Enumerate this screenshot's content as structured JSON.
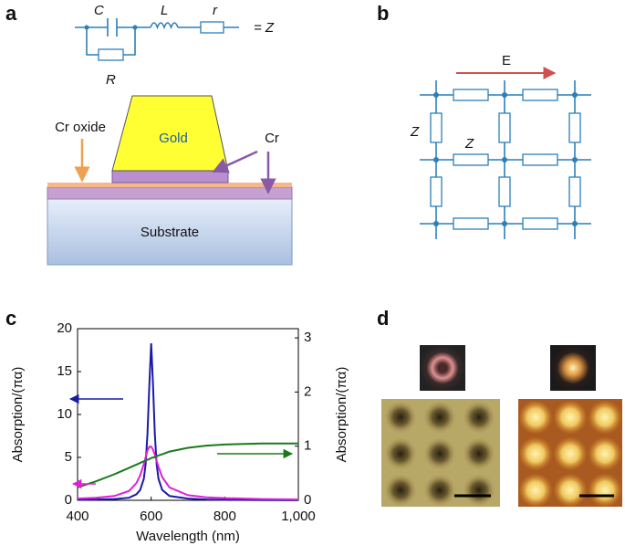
{
  "panel_labels": [
    "a",
    "b",
    "c",
    "d"
  ],
  "panel_a": {
    "capacitor": "C",
    "inductor": "L",
    "series_resistor": "r",
    "equals": "= Z",
    "parallel_resistor": "R",
    "gold": "Gold",
    "cr_oxide": "Cr oxide",
    "cr": "Cr",
    "substrate": "Substrate"
  },
  "panel_b": {
    "field": "E",
    "impedance_vertical": "Z",
    "impedance_horizontal": "Z"
  },
  "chart_data": {
    "type": "line",
    "x_label": "Wavelength (nm)",
    "y_label": "Absorption/(πα)",
    "y2_label": "Absorption/(πα)",
    "x": [
      400,
      450,
      500,
      540,
      560,
      570,
      580,
      585,
      590,
      595,
      600,
      605,
      610,
      615,
      620,
      630,
      650,
      700,
      750,
      800,
      900,
      1000
    ],
    "series": [
      {
        "color": "#1a1aa8",
        "values": [
          0.05,
          0.1,
          0.15,
          0.3,
          0.7,
          1.2,
          2.5,
          4.2,
          7.7,
          13.5,
          18.3,
          13.5,
          7.7,
          4.2,
          2.5,
          1.2,
          0.5,
          0.2,
          0.1,
          0.05,
          0.02,
          0.01
        ]
      },
      {
        "color": "#e020d8",
        "values": [
          0.2,
          0.3,
          0.5,
          1.1,
          2.0,
          2.9,
          4.2,
          5.0,
          5.8,
          6.25,
          6.25,
          5.9,
          5.3,
          4.6,
          3.9,
          2.7,
          1.5,
          0.6,
          0.35,
          0.25,
          0.15,
          0.1
        ]
      },
      {
        "color": "#1a7a1a",
        "axis": "y2",
        "values": [
          0.24,
          0.35,
          0.48,
          0.6,
          0.66,
          0.69,
          0.72,
          0.73,
          0.75,
          0.76,
          0.78,
          0.79,
          0.8,
          0.81,
          0.83,
          0.85,
          0.9,
          0.97,
          1.01,
          1.03,
          1.05,
          1.05
        ]
      }
    ],
    "xlim": [
      400,
      1000
    ],
    "xticks": [
      400,
      600,
      800,
      {
        "value": 1000,
        "label": "1,000"
      }
    ],
    "ylim": [
      0,
      20
    ],
    "yticks": [
      0,
      5,
      10,
      15,
      20
    ],
    "y2lim": [
      0,
      3.17
    ],
    "y2ticks": [
      0,
      1,
      2,
      3
    ]
  }
}
